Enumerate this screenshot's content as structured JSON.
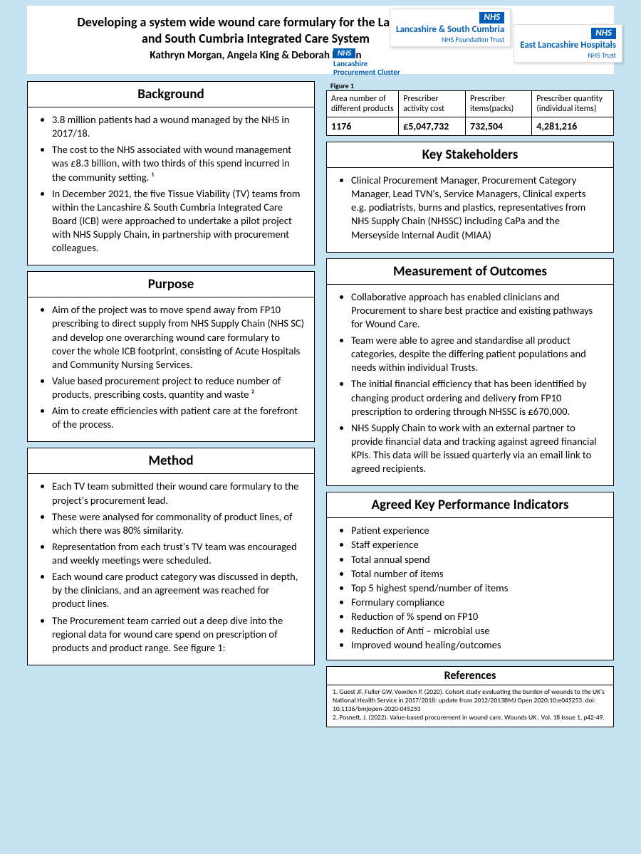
{
  "header": {
    "title_line1": "Developing a system wide wound care formulary for the Lancashire",
    "title_line2": "and South Cumbria Integrated Care System",
    "authors": "Kathryn Morgan, Angela King & Deborah Bolton"
  },
  "logos": {
    "nhs_badge": "NHS",
    "lsc_name": "Lancashire & South Cumbria",
    "lsc_sub": "NHS Foundation Trust",
    "elh_name": "East Lancashire Hospitals",
    "elh_sub": "NHS Trust",
    "proc_line1": "Lancashire",
    "proc_line2": "Procurement Cluster"
  },
  "figure1": {
    "label": "Figure 1",
    "headers": [
      "Area number of different products",
      "Prescriber activity cost",
      "Prescriber items(packs)",
      "Prescriber quantity (individual items)"
    ],
    "row": [
      "1176",
      "£5,047,732",
      "732,504",
      "4,281,216"
    ]
  },
  "sections": {
    "background": {
      "title": "Background",
      "items": [
        "3.8 million patients had a wound managed by the NHS in 2017/18.",
        "The cost to the NHS associated with wound management was £8.3 billion, with two thirds of this spend incurred in the community setting. ¹",
        "In December 2021, the five Tissue Viability (TV) teams from within the Lancashire & South Cumbria Integrated Care Board (ICB) were approached to undertake a pilot project with NHS Supply Chain, in partnership with procurement colleagues."
      ]
    },
    "purpose": {
      "title": "Purpose",
      "items": [
        "Aim of the project was to move spend away from FP10 prescribing to direct supply from NHS Supply Chain (NHS SC) and develop one overarching wound care formulary to cover the whole ICB footprint, consisting of Acute Hospitals and Community Nursing Services.",
        "Value based procurement project to reduce number of products, prescribing costs, quantity and waste ²",
        "Aim to create efficiencies with patient care at the forefront of the process."
      ]
    },
    "method": {
      "title": "Method",
      "items": [
        "Each TV team submitted their wound care formulary to the project's procurement lead.",
        "These were analysed for commonality of product lines, of which there was 80% similarity.",
        "Representation from each trust's TV team was encouraged and weekly meetings were scheduled.",
        "Each wound care product category was discussed in depth, by the clinicians, and an agreement was reached for product lines.",
        "The Procurement team carried out a deep dive into the regional data for wound care spend on prescription of products and product range. See figure 1:"
      ]
    },
    "stakeholders": {
      "title": "Key Stakeholders",
      "items": [
        "Clinical Procurement Manager, Procurement Category Manager, Lead TVN's, Service Managers, Clinical experts e.g. podiatrists, burns and plastics, representatives from NHS Supply Chain (NHSSC) including CaPa and the Merseyside Internal Audit (MIAA)"
      ]
    },
    "outcomes": {
      "title": "Measurement of Outcomes",
      "items": [
        "Collaborative approach has enabled clinicians and Procurement to share best practice and existing pathways for Wound Care.",
        "Team were able to agree and standardise all product categories, despite the differing patient populations and needs within individual Trusts.",
        "The initial financial efficiency that has been identified by changing product ordering and delivery from FP10 prescription to ordering through NHSSC is £670,000.",
        "NHS Supply Chain to work with an external partner to provide financial data and tracking against agreed financial KPIs. This data will be issued quarterly via an email link to agreed recipients."
      ]
    },
    "kpis": {
      "title": "Agreed Key Performance Indicators",
      "items": [
        "Patient experience",
        "Staff experience",
        "Total annual spend",
        "Total number of items",
        "Top 5 highest spend/number of items",
        "Formulary compliance",
        "Reduction of % spend on FP10",
        "Reduction of Anti – microbial use",
        "Improved wound healing/outcomes"
      ]
    },
    "references": {
      "title": "References",
      "items": [
        "1. Guest JF, Fuller GW, Vowden P. (2020). Cohort study evaluating the burden of wounds to the UK's National Health Service in 2017/2018: update from 2012/2013BMJ Open 2020;10:e045253. doi: 10.1136/bmjopen-2020-045253",
        "2. Posnett, J. (2022). Value-based procurement in wound care. Wounds UK . Vol. 18 Issue 1, p42-49."
      ]
    }
  }
}
